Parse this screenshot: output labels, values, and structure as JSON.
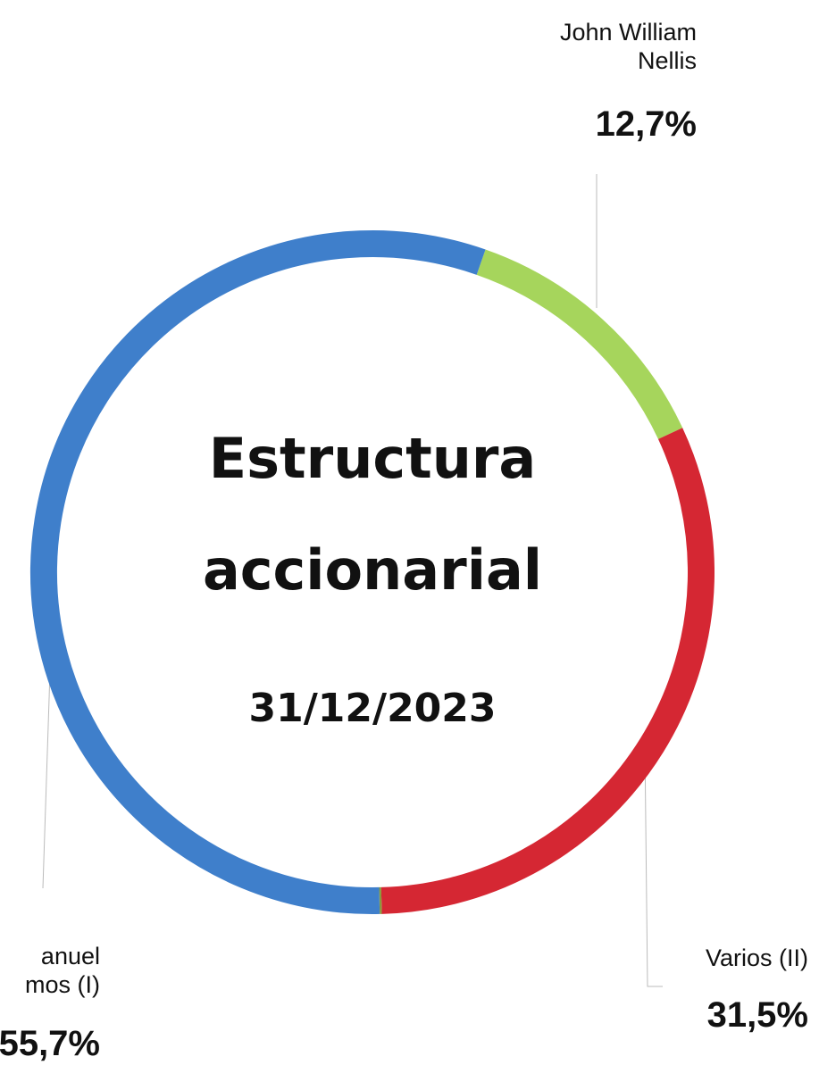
{
  "chart_data": {
    "type": "donut",
    "title": [
      "Estructura",
      "accionarial"
    ],
    "subtitle": "31/12/2023",
    "categories": [
      [
        "John William",
        "Nellis"
      ],
      [
        "Varios (II)"
      ],
      null,
      [
        "anuel",
        "mos (I)"
      ]
    ],
    "values": [
      12.7,
      31.5,
      0.1,
      55.7
    ],
    "value_labels": [
      "12,7%",
      "31,5%",
      null,
      "55,7%"
    ],
    "colors": [
      "#a6d55c",
      "#d52733",
      "#8a9a3a",
      "#3f7fcb"
    ]
  }
}
